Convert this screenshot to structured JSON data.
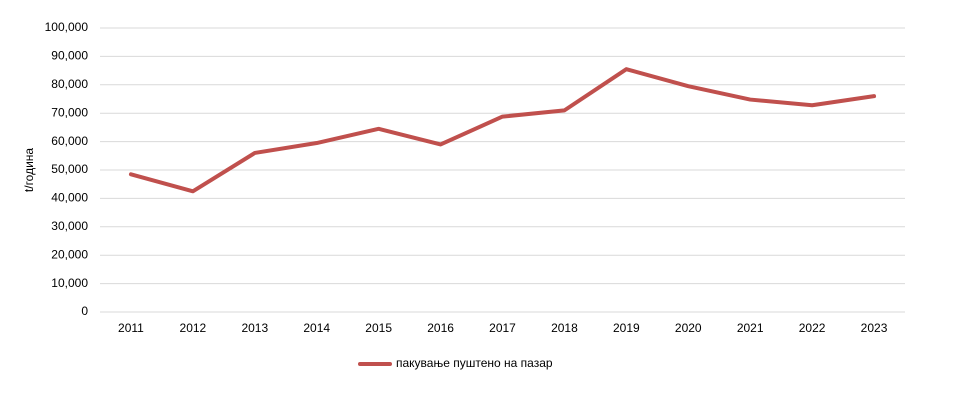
{
  "chart_data": {
    "type": "line",
    "y_label": "t/година",
    "categories": [
      "2011",
      "2012",
      "2013",
      "2014",
      "2015",
      "2016",
      "2017",
      "2018",
      "2019",
      "2020",
      "2021",
      "2022",
      "2023"
    ],
    "series": [
      {
        "name": "пакување пуштено  на пазар",
        "color": "#c0504d",
        "values": [
          48500,
          42500,
          56000,
          59500,
          64500,
          59000,
          68800,
          71000,
          85500,
          79500,
          74800,
          72800,
          76000
        ]
      }
    ],
    "ylim": [
      0,
      100000
    ],
    "yticks": [
      0,
      {
        "value": 10000,
        "label": "10,000"
      },
      {
        "value": 20000,
        "label": "20,000"
      },
      {
        "value": 30000,
        "label": "30,000"
      },
      {
        "value": 40000,
        "label": "40,000"
      },
      {
        "value": 50000,
        "label": "50,000"
      },
      {
        "value": 60000,
        "label": "60,000"
      },
      {
        "value": 70000,
        "label": "70,000"
      },
      {
        "value": 80000,
        "label": "80,000"
      },
      {
        "value": 90000,
        "label": "90,000"
      },
      {
        "value": 100000,
        "label": "100,000"
      }
    ],
    "grid": true,
    "legend": "bottom"
  }
}
